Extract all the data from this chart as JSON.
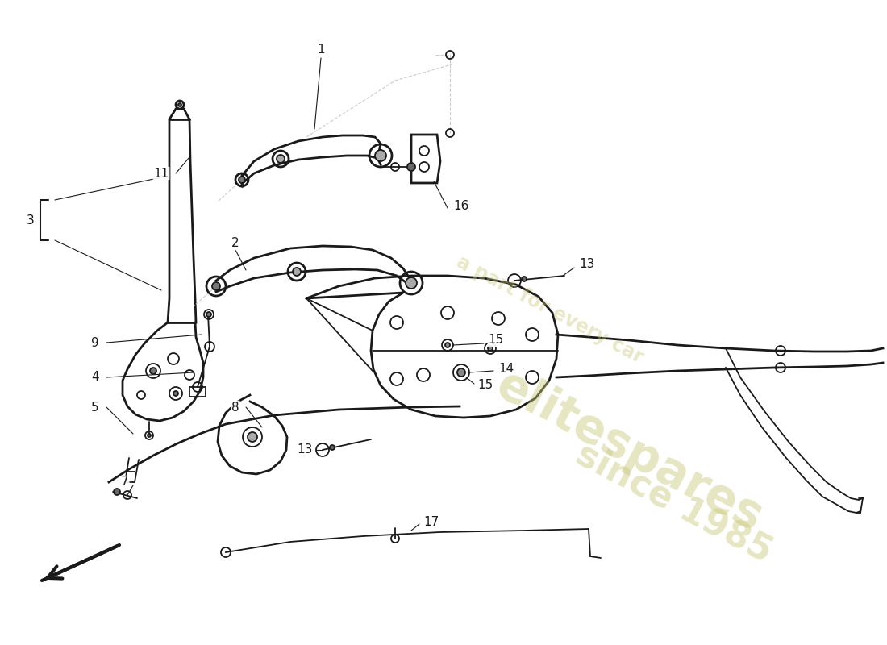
{
  "background_color": "#ffffff",
  "line_color": "#1a1a1a",
  "light_line_color": "#cccccc",
  "watermark_color_1": "#c8c87a",
  "watermark_color_2": "#c8c87a",
  "lw_main": 1.3,
  "lw_thick": 2.0,
  "lw_thin": 0.8,
  "part_labels": [
    "1",
    "2",
    "3",
    "4",
    "5",
    "7",
    "8",
    "9",
    "11",
    "13",
    "13",
    "14",
    "15",
    "15",
    "16",
    "17"
  ]
}
